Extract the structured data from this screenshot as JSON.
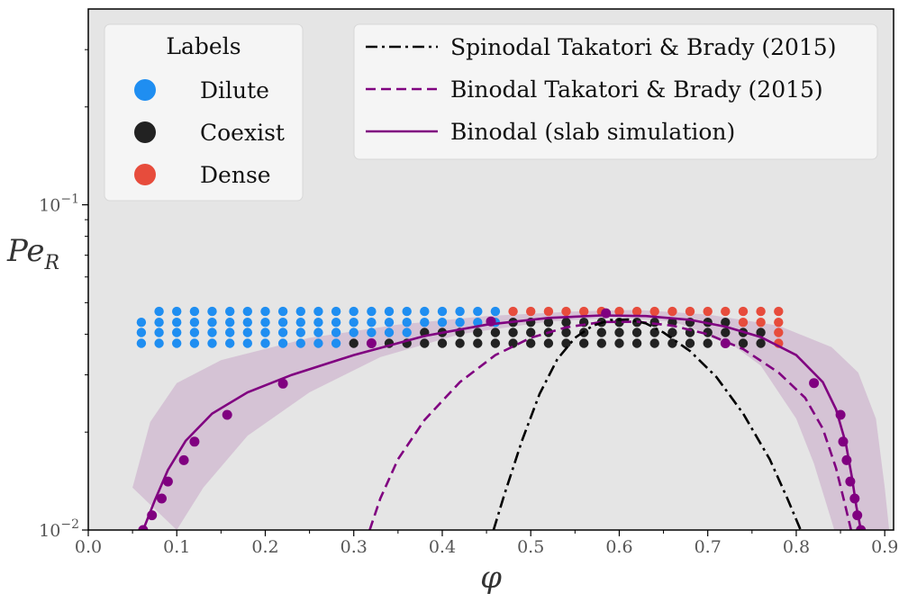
{
  "chart_data": {
    "type": "scatter",
    "xlabel": "φ",
    "ylabel": "Pe",
    "ylabel_sub": "R",
    "xlim": [
      0.0,
      0.91
    ],
    "ylim": [
      0.01,
      0.4
    ],
    "yscale": "log",
    "grid": false,
    "background": "#e5e5e5",
    "x_ticks": [
      {
        "value": 0.0,
        "label": "0.0"
      },
      {
        "value": 0.1,
        "label": "0.1"
      },
      {
        "value": 0.2,
        "label": "0.2"
      },
      {
        "value": 0.3,
        "label": "0.3"
      },
      {
        "value": 0.4,
        "label": "0.4"
      },
      {
        "value": 0.5,
        "label": "0.5"
      },
      {
        "value": 0.6,
        "label": "0.6"
      },
      {
        "value": 0.7,
        "label": "0.7"
      },
      {
        "value": 0.8,
        "label": "0.8"
      },
      {
        "value": 0.9,
        "label": "0.9"
      }
    ],
    "y_ticks": [
      {
        "value": 0.01,
        "base": "10",
        "exp": "−2"
      },
      {
        "value": 0.1,
        "base": "10",
        "exp": "−1"
      }
    ],
    "labels_legend": {
      "title": "Labels",
      "placement": "top-left",
      "entries": [
        {
          "label": "Dilute",
          "color": "#1f8ef1"
        },
        {
          "label": "Coexist",
          "color": "#222222"
        },
        {
          "label": "Dense",
          "color": "#e74c3c"
        }
      ]
    },
    "lines_legend": {
      "placement": "top-right",
      "entries": [
        {
          "label": "Spinodal Takatori & Brady (2015)",
          "style": "dashdot",
          "color": "#000000"
        },
        {
          "label": "Binodal Takatori & Brady (2015)",
          "style": "dashed",
          "color": "#800080"
        },
        {
          "label": "Binodal (slab simulation)",
          "style": "solid",
          "color": "#800080"
        }
      ]
    },
    "grid_points": {
      "pe_levels": [
        0.0375,
        0.0405,
        0.0435,
        0.047
      ],
      "phi_values": [
        0.06,
        0.08,
        0.1,
        0.12,
        0.14,
        0.16,
        0.18,
        0.2,
        0.22,
        0.24,
        0.26,
        0.28,
        0.3,
        0.32,
        0.34,
        0.36,
        0.38,
        0.4,
        0.42,
        0.44,
        0.46,
        0.48,
        0.5,
        0.52,
        0.54,
        0.56,
        0.58,
        0.6,
        0.62,
        0.64,
        0.66,
        0.68,
        0.7,
        0.72,
        0.74,
        0.76,
        0.78
      ]
    },
    "series": [
      {
        "label": "Dilute",
        "color": "#1f8ef1",
        "kind": "points",
        "ranges": [
          {
            "pe": 0.047,
            "phi_min": 0.08,
            "phi_max": 0.46
          },
          {
            "pe": 0.0435,
            "phi_min": 0.06,
            "phi_max": 0.46
          },
          {
            "pe": 0.0405,
            "phi_min": 0.06,
            "phi_max": 0.36
          },
          {
            "pe": 0.0375,
            "phi_min": 0.06,
            "phi_max": 0.28
          }
        ]
      },
      {
        "label": "Coexist",
        "color": "#222222",
        "kind": "points",
        "ranges": [
          {
            "pe": 0.0435,
            "phi_min": 0.48,
            "phi_max": 0.72
          },
          {
            "pe": 0.0405,
            "phi_min": 0.38,
            "phi_max": 0.76
          },
          {
            "pe": 0.0375,
            "phi_min": 0.3,
            "phi_max": 0.76
          }
        ]
      },
      {
        "label": "Dense",
        "color": "#e74c3c",
        "kind": "points",
        "ranges": [
          {
            "pe": 0.047,
            "phi_min": 0.48,
            "phi_max": 0.78
          },
          {
            "pe": 0.0435,
            "phi_min": 0.74,
            "phi_max": 0.78
          },
          {
            "pe": 0.0405,
            "phi_min": 0.78,
            "phi_max": 0.78
          },
          {
            "pe": 0.0375,
            "phi_min": 0.78,
            "phi_max": 0.78
          }
        ]
      },
      {
        "label": "Binodal (slab simulation)",
        "kind": "band",
        "color": "#c8a8c8",
        "lower": [
          [
            0.1,
            0.01
          ],
          [
            0.13,
            0.0135
          ],
          [
            0.18,
            0.0195
          ],
          [
            0.25,
            0.0265
          ],
          [
            0.33,
            0.034
          ],
          [
            0.42,
            0.04
          ],
          [
            0.52,
            0.0438
          ],
          [
            0.6,
            0.045
          ],
          [
            0.66,
            0.0438
          ],
          [
            0.72,
            0.0385
          ],
          [
            0.76,
            0.032
          ],
          [
            0.8,
            0.022
          ],
          [
            0.82,
            0.016
          ],
          [
            0.835,
            0.0118
          ],
          [
            0.843,
            0.01
          ]
        ],
        "upper": [
          [
            0.05,
            0.0135
          ],
          [
            0.07,
            0.0215
          ],
          [
            0.1,
            0.0283
          ],
          [
            0.15,
            0.0333
          ],
          [
            0.25,
            0.039
          ],
          [
            0.35,
            0.0428
          ],
          [
            0.45,
            0.0455
          ],
          [
            0.55,
            0.047
          ],
          [
            0.62,
            0.0475
          ],
          [
            0.7,
            0.046
          ],
          [
            0.78,
            0.0425
          ],
          [
            0.84,
            0.0365
          ],
          [
            0.87,
            0.0305
          ],
          [
            0.89,
            0.022
          ],
          [
            0.9,
            0.0135
          ],
          [
            0.905,
            0.01
          ]
        ]
      },
      {
        "label": "Binodal (slab simulation)",
        "kind": "line",
        "style": "solid",
        "color": "#800080",
        "points": [
          [
            0.062,
            0.01
          ],
          [
            0.075,
            0.0123
          ],
          [
            0.09,
            0.0153
          ],
          [
            0.11,
            0.0188
          ],
          [
            0.14,
            0.0228
          ],
          [
            0.18,
            0.0265
          ],
          [
            0.23,
            0.03
          ],
          [
            0.3,
            0.0345
          ],
          [
            0.38,
            0.0395
          ],
          [
            0.45,
            0.0428
          ],
          [
            0.52,
            0.0449
          ],
          [
            0.58,
            0.0457
          ],
          [
            0.63,
            0.0455
          ],
          [
            0.68,
            0.0443
          ],
          [
            0.72,
            0.0422
          ],
          [
            0.76,
            0.0392
          ],
          [
            0.8,
            0.0345
          ],
          [
            0.83,
            0.0285
          ],
          [
            0.845,
            0.0235
          ],
          [
            0.856,
            0.0185
          ],
          [
            0.863,
            0.0145
          ],
          [
            0.868,
            0.0118
          ],
          [
            0.873,
            0.01
          ]
        ]
      },
      {
        "label": "Binodal (slab simulation)",
        "kind": "markers",
        "color": "#800080",
        "points": [
          [
            0.062,
            0.01
          ],
          [
            0.072,
            0.0111
          ],
          [
            0.083,
            0.0125
          ],
          [
            0.09,
            0.0141
          ],
          [
            0.108,
            0.0164
          ],
          [
            0.12,
            0.0187
          ],
          [
            0.157,
            0.0226
          ],
          [
            0.22,
            0.0282
          ],
          [
            0.32,
            0.0375
          ],
          [
            0.455,
            0.0438
          ],
          [
            0.585,
            0.0464
          ],
          [
            0.72,
            0.0375
          ],
          [
            0.82,
            0.0283
          ],
          [
            0.85,
            0.0226
          ],
          [
            0.853,
            0.0187
          ],
          [
            0.857,
            0.0164
          ],
          [
            0.861,
            0.0141
          ],
          [
            0.866,
            0.0125
          ],
          [
            0.869,
            0.0111
          ],
          [
            0.873,
            0.01
          ]
        ]
      },
      {
        "label": "Binodal Takatori & Brady (2015)",
        "kind": "line",
        "style": "dashed",
        "color": "#800080",
        "points": [
          [
            0.318,
            0.01
          ],
          [
            0.33,
            0.0125
          ],
          [
            0.35,
            0.0165
          ],
          [
            0.38,
            0.0218
          ],
          [
            0.42,
            0.0285
          ],
          [
            0.46,
            0.0345
          ],
          [
            0.5,
            0.039
          ],
          [
            0.54,
            0.042
          ],
          [
            0.58,
            0.0436
          ],
          [
            0.62,
            0.0437
          ],
          [
            0.66,
            0.0425
          ],
          [
            0.7,
            0.04
          ],
          [
            0.74,
            0.036
          ],
          [
            0.78,
            0.0305
          ],
          [
            0.81,
            0.0255
          ],
          [
            0.83,
            0.0205
          ],
          [
            0.845,
            0.0155
          ],
          [
            0.855,
            0.012
          ],
          [
            0.862,
            0.01
          ]
        ]
      },
      {
        "label": "Spinodal Takatori & Brady (2015)",
        "kind": "line",
        "style": "dashdot",
        "color": "#000000",
        "points": [
          [
            0.458,
            0.01
          ],
          [
            0.47,
            0.0128
          ],
          [
            0.49,
            0.0188
          ],
          [
            0.51,
            0.0262
          ],
          [
            0.53,
            0.0335
          ],
          [
            0.55,
            0.039
          ],
          [
            0.57,
            0.0425
          ],
          [
            0.59,
            0.0442
          ],
          [
            0.61,
            0.0444
          ],
          [
            0.63,
            0.0432
          ],
          [
            0.65,
            0.0405
          ],
          [
            0.68,
            0.0355
          ],
          [
            0.71,
            0.0295
          ],
          [
            0.74,
            0.0228
          ],
          [
            0.77,
            0.0165
          ],
          [
            0.79,
            0.0125
          ],
          [
            0.805,
            0.01
          ]
        ]
      }
    ]
  }
}
